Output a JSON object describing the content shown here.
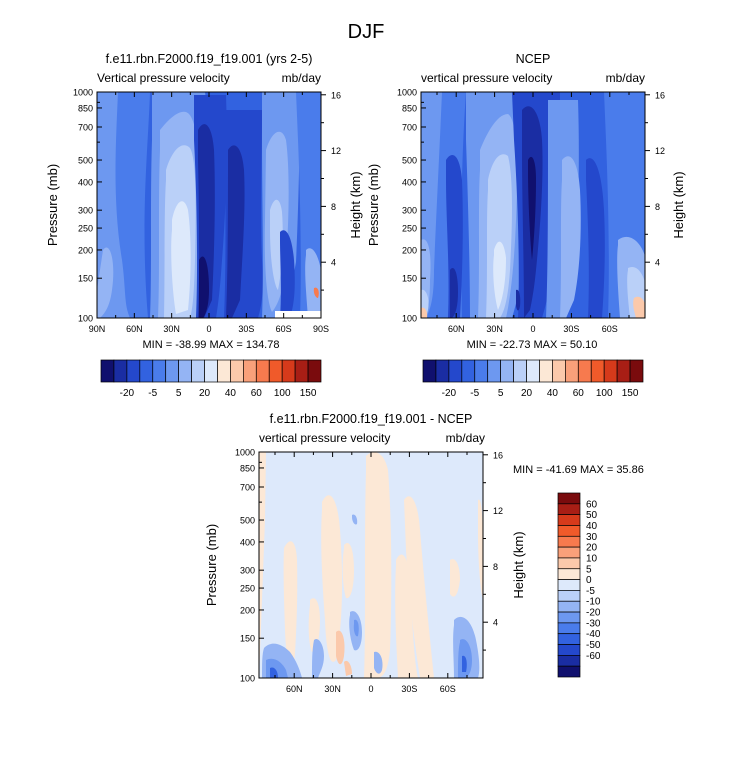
{
  "page": {
    "title": "DJF"
  },
  "colors": {
    "dir_levels": [
      "#10106e",
      "#1a2da3",
      "#2448cc",
      "#3262e0",
      "#4a7ceb",
      "#6d98f0",
      "#94b4f4",
      "#bad0f8",
      "#dde9fb",
      "#fce8d6",
      "#fbc9ab",
      "#f9a07a",
      "#f77a4e",
      "#f05a2a",
      "#d63a1b",
      "#a81e15",
      "#7a0b0d"
    ],
    "diff_levels": [
      "#10106e",
      "#1a2da3",
      "#2448cc",
      "#3262e0",
      "#4a7ceb",
      "#6d98f0",
      "#94b4f4",
      "#bad0f8",
      "#dde9fb",
      "#fce8d6",
      "#fbc9ab",
      "#f9a07a",
      "#f77a4e",
      "#f05a2a",
      "#d63a1b",
      "#a81e15",
      "#7a0b0d"
    ]
  },
  "chart_data": [
    {
      "id": "model",
      "type": "heatmap",
      "title": "f.e11.rbn.F2000.f19_f19.001 (yrs 2-5)",
      "left_string": "Vertical pressure velocity",
      "right_string": "mb/day",
      "ylabel": "Pressure (mb)",
      "ylabel_right": "Height (km)",
      "x_ticks": [
        "90N",
        "60N",
        "30N",
        "0",
        "30S",
        "60S",
        "90S"
      ],
      "x_tick_values": [
        90,
        60,
        30,
        0,
        -30,
        -60,
        -90
      ],
      "xlim": [
        90,
        -90
      ],
      "y_ticks": [
        "100",
        "150",
        "200",
        "250",
        "300",
        "400",
        "500",
        "700",
        "850",
        "1000"
      ],
      "y_tick_values": [
        100,
        150,
        200,
        250,
        300,
        400,
        500,
        700,
        850,
        1000
      ],
      "ylim": [
        1000,
        100
      ],
      "yscale": "log",
      "height_ticks": [
        "16",
        "12",
        "8",
        "4"
      ],
      "height_tick_values": [
        16,
        12,
        8,
        4
      ],
      "stats": "MIN = -38.99  MAX = 134.78",
      "min": -38.99,
      "max": 134.78
    },
    {
      "id": "ncep",
      "type": "heatmap",
      "title": "NCEP",
      "left_string": "vertical pressure velocity",
      "right_string": "mb/day",
      "ylabel": "Pressure (mb)",
      "ylabel_right": "Height (km)",
      "x_ticks": [
        "60N",
        "30N",
        "0",
        "30S",
        "60S"
      ],
      "x_tick_values": [
        60,
        30,
        0,
        -30,
        -60
      ],
      "xlim": [
        87.5,
        -87.5
      ],
      "y_ticks": [
        "100",
        "150",
        "200",
        "250",
        "300",
        "400",
        "500",
        "700",
        "850",
        "1000"
      ],
      "y_tick_values": [
        100,
        150,
        200,
        250,
        300,
        400,
        500,
        700,
        850,
        1000
      ],
      "ylim": [
        1000,
        100
      ],
      "yscale": "log",
      "height_ticks": [
        "16",
        "12",
        "8",
        "4"
      ],
      "height_tick_values": [
        16,
        12,
        8,
        4
      ],
      "stats": "MIN = -22.73  MAX =  50.10",
      "min": -22.73,
      "max": 50.1
    },
    {
      "id": "diff",
      "type": "heatmap",
      "title": "f.e11.rbn.F2000.f19_f19.001 - NCEP",
      "left_string": "vertical pressure velocity",
      "right_string": "mb/day",
      "ylabel": "Pressure (mb)",
      "ylabel_right": "Height (km)",
      "x_ticks": [
        "60N",
        "30N",
        "0",
        "30S",
        "60S"
      ],
      "x_tick_values": [
        60,
        30,
        0,
        -30,
        -60
      ],
      "xlim": [
        87.5,
        -87.5
      ],
      "y_ticks": [
        "100",
        "150",
        "200",
        "250",
        "300",
        "400",
        "500",
        "700",
        "850",
        "1000"
      ],
      "y_tick_values": [
        100,
        150,
        200,
        250,
        300,
        400,
        500,
        700,
        850,
        1000
      ],
      "ylim": [
        1000,
        100
      ],
      "yscale": "log",
      "height_ticks": [
        "16",
        "12",
        "8",
        "4"
      ],
      "height_tick_values": [
        16,
        12,
        8,
        4
      ],
      "stats": "MIN = -41.69  MAX = 35.86",
      "min": -41.69,
      "max": 35.86
    }
  ],
  "colorbar_direct": {
    "orientation": "horizontal",
    "labels": [
      "-20",
      "-5",
      "5",
      "20",
      "40",
      "60",
      "100",
      "150"
    ],
    "label_box_index": [
      1,
      3,
      5,
      7,
      9,
      11,
      13,
      15
    ]
  },
  "colorbar_diff": {
    "orientation": "vertical",
    "labels": [
      "60",
      "50",
      "40",
      "30",
      "20",
      "10",
      "5",
      "0",
      "-5",
      "-10",
      "-20",
      "-30",
      "-40",
      "-50",
      "-60"
    ]
  }
}
